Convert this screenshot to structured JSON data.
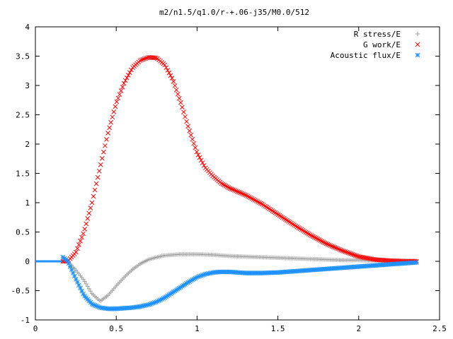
{
  "chart_data": {
    "type": "scatter",
    "title": "m2/n1.5/q1.0/r-+.06-j35/M0.0/512",
    "xlabel": "",
    "ylabel": "",
    "xlim": [
      0,
      2.5
    ],
    "ylim": [
      -1,
      4
    ],
    "grid": false,
    "legend_position": "top-right",
    "x_ticks": [
      "0",
      "0.5",
      "1",
      "1.5",
      "2",
      "2.5"
    ],
    "y_ticks": [
      "-1",
      "-0.5",
      "0",
      "0.5",
      "1",
      "1.5",
      "2",
      "2.5",
      "3",
      "3.5",
      "4"
    ],
    "series": [
      {
        "name": "R stress/E",
        "marker": "plus",
        "color": "#a0a0a0",
        "x": [
          0.17,
          0.2,
          0.25,
          0.3,
          0.35,
          0.4,
          0.45,
          0.5,
          0.55,
          0.6,
          0.65,
          0.7,
          0.75,
          0.8,
          0.85,
          0.9,
          1.0,
          1.1,
          1.2,
          1.3,
          1.4,
          1.5,
          1.6,
          1.7,
          1.8,
          1.9,
          2.0,
          2.1,
          2.2,
          2.3,
          2.36
        ],
        "y": [
          0.07,
          0.0,
          -0.15,
          -0.32,
          -0.55,
          -0.68,
          -0.58,
          -0.42,
          -0.27,
          -0.14,
          -0.04,
          0.03,
          0.07,
          0.1,
          0.11,
          0.12,
          0.12,
          0.11,
          0.09,
          0.08,
          0.07,
          0.06,
          0.05,
          0.04,
          0.03,
          0.02,
          0.02,
          0.01,
          0.01,
          0.01,
          0.01
        ]
      },
      {
        "name": "G work/E",
        "marker": "cross",
        "color": "#ff0000",
        "x": [
          0.17,
          0.2,
          0.25,
          0.3,
          0.35,
          0.4,
          0.45,
          0.5,
          0.55,
          0.6,
          0.65,
          0.7,
          0.75,
          0.8,
          0.85,
          0.9,
          0.95,
          1.0,
          1.05,
          1.1,
          1.15,
          1.2,
          1.3,
          1.4,
          1.5,
          1.6,
          1.7,
          1.8,
          1.9,
          2.0,
          2.1,
          2.2,
          2.3,
          2.36
        ],
        "y": [
          0.0,
          0.0,
          0.15,
          0.5,
          1.0,
          1.6,
          2.2,
          2.7,
          3.05,
          3.3,
          3.43,
          3.48,
          3.47,
          3.35,
          3.1,
          2.7,
          2.25,
          1.85,
          1.6,
          1.45,
          1.33,
          1.25,
          1.13,
          0.98,
          0.8,
          0.62,
          0.45,
          0.3,
          0.18,
          0.08,
          0.03,
          0.01,
          0.0,
          0.0
        ]
      },
      {
        "name": "Acoustic flux/E",
        "marker": "star",
        "color": "#1e90ff",
        "x": [
          0.17,
          0.2,
          0.25,
          0.3,
          0.35,
          0.4,
          0.45,
          0.5,
          0.55,
          0.6,
          0.65,
          0.7,
          0.75,
          0.8,
          0.85,
          0.9,
          0.95,
          1.0,
          1.05,
          1.1,
          1.15,
          1.2,
          1.25,
          1.3,
          1.4,
          1.5,
          1.6,
          1.7,
          1.8,
          1.9,
          2.0,
          2.1,
          2.2,
          2.3,
          2.36
        ],
        "y": [
          0.07,
          0.0,
          -0.3,
          -0.58,
          -0.73,
          -0.79,
          -0.81,
          -0.81,
          -0.8,
          -0.79,
          -0.77,
          -0.74,
          -0.69,
          -0.62,
          -0.53,
          -0.44,
          -0.35,
          -0.27,
          -0.22,
          -0.19,
          -0.18,
          -0.18,
          -0.19,
          -0.2,
          -0.2,
          -0.19,
          -0.17,
          -0.15,
          -0.13,
          -0.11,
          -0.09,
          -0.07,
          -0.05,
          -0.03,
          -0.02
        ]
      }
    ]
  }
}
